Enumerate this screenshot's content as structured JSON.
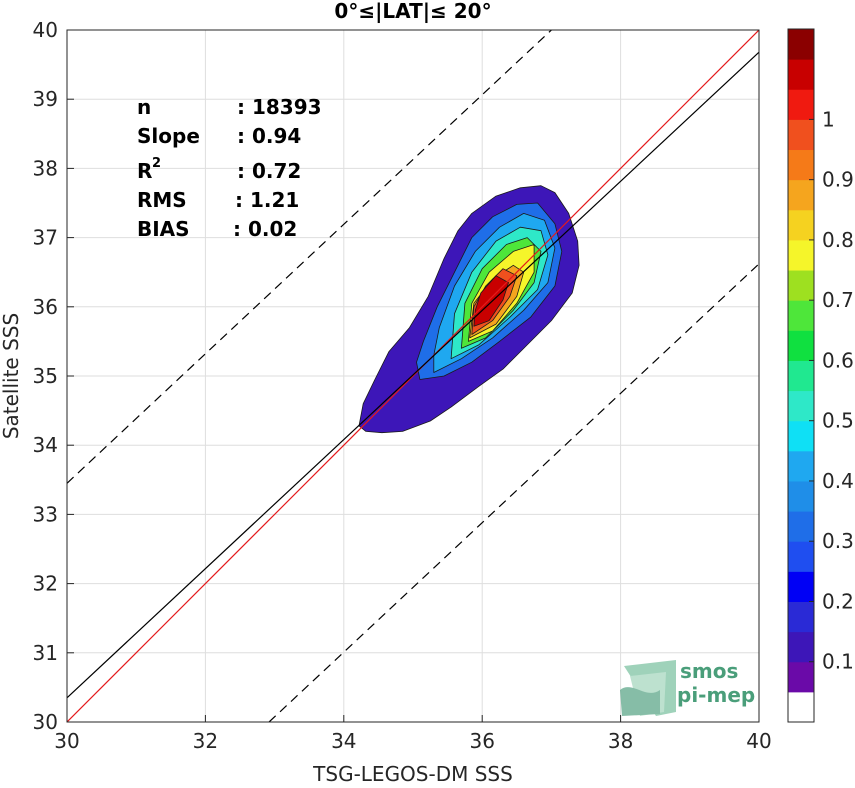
{
  "chart_data": {
    "type": "heatmap",
    "title": "0°≤|LAT|≤ 20°",
    "xlabel": "TSG-LEGOS-DM SSS",
    "ylabel": "Satellite SSS",
    "xlim": [
      30,
      40
    ],
    "ylim": [
      30,
      40
    ],
    "xticks": [
      "30",
      "32",
      "34",
      "36",
      "38",
      "40"
    ],
    "yticks": [
      "30",
      "31",
      "32",
      "33",
      "34",
      "35",
      "36",
      "37",
      "38",
      "39",
      "40"
    ],
    "grid": true,
    "stats": [
      {
        "label": "n",
        "value": ": 18393"
      },
      {
        "label": "Slope",
        "value": ": 0.94"
      },
      {
        "label": "R²",
        "value": ": 0.72"
      },
      {
        "label": "RMS",
        "value": ": 1.21"
      },
      {
        "label": "BIAS",
        "value": ": 0.02"
      }
    ],
    "lines": {
      "identity": {
        "slope": 1,
        "intercept": 0,
        "color": "#e41a1c",
        "style": "solid"
      },
      "fit": {
        "points": [
          [
            30,
            30.35
          ],
          [
            40,
            39.68
          ]
        ],
        "color": "#000000",
        "style": "solid"
      },
      "upper_bound": {
        "points": [
          [
            30,
            33.45
          ],
          [
            37.0,
            40.0
          ]
        ],
        "color": "#000000",
        "style": "dashed"
      },
      "lower_bound": {
        "points": [
          [
            32.92,
            30
          ],
          [
            40,
            36.62
          ]
        ],
        "color": "#000000",
        "style": "dashed"
      }
    },
    "density": {
      "peak": [
        36.0,
        35.95
      ],
      "levels": [
        {
          "level": 0.05,
          "color": "#3d16b8",
          "polygon": [
            [
              34.22,
              34.28
            ],
            [
              34.32,
              34.2
            ],
            [
              34.55,
              34.18
            ],
            [
              34.85,
              34.2
            ],
            [
              35.25,
              34.35
            ],
            [
              35.55,
              34.55
            ],
            [
              35.95,
              34.85
            ],
            [
              36.3,
              35.1
            ],
            [
              36.65,
              35.45
            ],
            [
              37.0,
              35.8
            ],
            [
              37.3,
              36.2
            ],
            [
              37.4,
              36.6
            ],
            [
              37.38,
              36.95
            ],
            [
              37.25,
              37.35
            ],
            [
              37.05,
              37.65
            ],
            [
              36.85,
              37.75
            ],
            [
              36.55,
              37.72
            ],
            [
              36.2,
              37.6
            ],
            [
              35.85,
              37.35
            ],
            [
              35.65,
              37.1
            ],
            [
              35.45,
              36.7
            ],
            [
              35.22,
              36.15
            ],
            [
              34.95,
              35.7
            ],
            [
              34.65,
              35.35
            ],
            [
              34.45,
              34.95
            ],
            [
              34.28,
              34.6
            ]
          ]
        },
        {
          "level": 0.2,
          "color": "#1f6ee8",
          "polygon": [
            [
              35.1,
              34.95
            ],
            [
              35.45,
              35.0
            ],
            [
              35.85,
              35.2
            ],
            [
              36.25,
              35.5
            ],
            [
              36.7,
              35.85
            ],
            [
              37.05,
              36.3
            ],
            [
              37.15,
              36.8
            ],
            [
              37.05,
              37.2
            ],
            [
              36.8,
              37.5
            ],
            [
              36.5,
              37.48
            ],
            [
              36.15,
              37.3
            ],
            [
              35.85,
              37.0
            ],
            [
              35.6,
              36.5
            ],
            [
              35.35,
              36.0
            ],
            [
              35.15,
              35.5
            ],
            [
              35.05,
              35.2
            ]
          ]
        },
        {
          "level": 0.3,
          "color": "#1fa8f0",
          "polygon": [
            [
              35.3,
              35.05
            ],
            [
              35.7,
              35.25
            ],
            [
              36.15,
              35.55
            ],
            [
              36.6,
              35.95
            ],
            [
              36.95,
              36.35
            ],
            [
              37.05,
              36.85
            ],
            [
              36.9,
              37.25
            ],
            [
              36.6,
              37.35
            ],
            [
              36.25,
              37.15
            ],
            [
              35.9,
              36.8
            ],
            [
              35.6,
              36.3
            ],
            [
              35.38,
              35.7
            ],
            [
              35.3,
              35.3
            ]
          ]
        },
        {
          "level": 0.4,
          "color": "#2ee8c8",
          "polygon": [
            [
              35.55,
              35.25
            ],
            [
              35.95,
              35.45
            ],
            [
              36.4,
              35.85
            ],
            [
              36.8,
              36.25
            ],
            [
              36.95,
              36.75
            ],
            [
              36.85,
              37.1
            ],
            [
              36.55,
              37.15
            ],
            [
              36.2,
              36.95
            ],
            [
              35.85,
              36.5
            ],
            [
              35.6,
              35.9
            ]
          ]
        },
        {
          "level": 0.5,
          "color": "#4ee63a",
          "polygon": [
            [
              35.7,
              35.4
            ],
            [
              36.05,
              35.55
            ],
            [
              36.45,
              35.95
            ],
            [
              36.75,
              36.35
            ],
            [
              36.85,
              36.8
            ],
            [
              36.65,
              37.0
            ],
            [
              36.35,
              36.9
            ],
            [
              36.0,
              36.55
            ],
            [
              35.75,
              36.05
            ]
          ]
        },
        {
          "level": 0.6,
          "color": "#f5f52a",
          "polygon": [
            [
              35.8,
              35.5
            ],
            [
              36.15,
              35.65
            ],
            [
              36.5,
              36.05
            ],
            [
              36.75,
              36.5
            ],
            [
              36.75,
              36.9
            ],
            [
              36.45,
              36.8
            ],
            [
              36.1,
              36.5
            ],
            [
              35.85,
              36.05
            ]
          ]
        },
        {
          "level": 0.7,
          "color": "#f5a51e",
          "polygon": [
            [
              35.82,
              35.55
            ],
            [
              36.2,
              35.75
            ],
            [
              36.5,
              36.15
            ],
            [
              36.6,
              36.5
            ],
            [
              36.45,
              36.6
            ],
            [
              36.15,
              36.4
            ],
            [
              35.88,
              36.05
            ]
          ]
        },
        {
          "level": 0.8,
          "color": "#f0501e",
          "polygon": [
            [
              35.85,
              35.6
            ],
            [
              36.15,
              35.8
            ],
            [
              36.4,
              36.15
            ],
            [
              36.5,
              36.45
            ],
            [
              36.3,
              36.55
            ],
            [
              36.05,
              36.3
            ],
            [
              35.88,
              36.0
            ]
          ]
        },
        {
          "level": 0.9,
          "color": "#c80000",
          "polygon": [
            [
              35.88,
              35.72
            ],
            [
              36.1,
              35.8
            ],
            [
              36.3,
              36.1
            ],
            [
              36.38,
              36.35
            ],
            [
              36.2,
              36.45
            ],
            [
              35.98,
              36.2
            ],
            [
              35.9,
              35.95
            ]
          ]
        }
      ]
    },
    "colorbar": {
      "ticks": [
        "0.1",
        "0.2",
        "0.3",
        "0.4",
        "0.5",
        "0.6",
        "0.7",
        "0.8",
        "0.9",
        "1"
      ],
      "colors": [
        "#ffffff",
        "#6a0aa8",
        "#3d16b8",
        "#2a2ad6",
        "#0000f5",
        "#1f4ef0",
        "#1f6ee8",
        "#1f8ee8",
        "#1fa8f0",
        "#0fe0f5",
        "#2ee8c8",
        "#20e890",
        "#10e040",
        "#4ee63a",
        "#9ee020",
        "#f5f52a",
        "#f5d220",
        "#f5a51e",
        "#f57a18",
        "#f0501e",
        "#f01a10",
        "#c80000",
        "#8b0000"
      ]
    },
    "watermark": {
      "line1": "smos",
      "line2": "pi-mep",
      "color": "#4a9e7a"
    }
  }
}
